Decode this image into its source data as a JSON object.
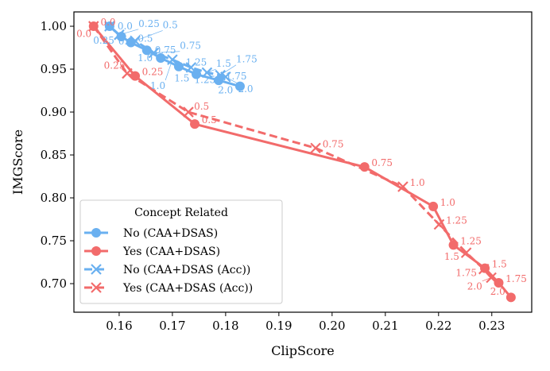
{
  "chart_data": {
    "type": "line",
    "xlabel": "ClipScore",
    "ylabel": "IMGScore",
    "xlim": [
      0.1515,
      0.2375
    ],
    "ylim": [
      0.6667,
      1.0167
    ],
    "xticks": [
      "0.16",
      "0.17",
      "0.18",
      "0.19",
      "0.20",
      "0.21",
      "0.22",
      "0.23"
    ],
    "yticks": [
      "0.70",
      "0.75",
      "0.80",
      "0.85",
      "0.90",
      "0.95",
      "1.00"
    ],
    "grid": false,
    "legend": {
      "title": "Concept Related",
      "placement": "lower-left"
    },
    "series": [
      {
        "name": "No (CAA+DSAS)",
        "color": "#6ab0f0",
        "marker": "circle",
        "dash": false,
        "labels": [
          "0.0",
          "0.25",
          "0.5",
          "0.75",
          "1.0",
          "1.25",
          "1.5",
          "1.75",
          "2.0"
        ],
        "x": [
          0.1582,
          0.1604,
          0.1622,
          0.1652,
          0.1678,
          0.1712,
          0.1745,
          0.1787,
          0.1827
        ],
        "y": [
          1.0,
          0.988,
          0.981,
          0.972,
          0.963,
          0.953,
          0.944,
          0.937,
          0.93
        ]
      },
      {
        "name": "Yes (CAA+DSAS)",
        "color": "#f26b6b",
        "marker": "circle",
        "dash": false,
        "labels": [
          "0.0",
          "0.25",
          "0.5",
          "0.75",
          "1.0",
          "1.25",
          "1.5",
          "1.75",
          "2.0"
        ],
        "x": [
          0.1552,
          0.163,
          0.1742,
          0.2061,
          0.219,
          0.2228,
          0.2287,
          0.2313,
          0.2336
        ],
        "y": [
          1.0,
          0.942,
          0.886,
          0.836,
          0.79,
          0.745,
          0.718,
          0.701,
          0.684
        ]
      },
      {
        "name": "No (CAA+DSAS (Acc))",
        "color": "#6ab0f0",
        "marker": "x",
        "dash": true,
        "labels": [
          "0.0",
          "0.25",
          "0.5",
          "0.75",
          "1.0",
          "1.25",
          "1.5",
          "1.75",
          "2.0"
        ],
        "x": [
          0.1582,
          0.16,
          0.163,
          0.1665,
          0.17,
          0.1735,
          0.1765,
          0.179,
          0.18
        ],
        "y": [
          1.0,
          0.99,
          0.983,
          0.969,
          0.961,
          0.952,
          0.946,
          0.943,
          0.941
        ]
      },
      {
        "name": "Yes (CAA+DSAS (Acc))",
        "color": "#f26b6b",
        "marker": "x",
        "dash": true,
        "labels": [
          "0.0",
          "0.25",
          "0.5",
          "0.75",
          "1.0",
          "1.25",
          "1.5",
          "1.75",
          "2.0"
        ],
        "x": [
          0.1552,
          0.1615,
          0.173,
          0.1969,
          0.2133,
          0.2201,
          0.2252,
          0.2285,
          0.2299
        ],
        "y": [
          1.0,
          0.945,
          0.9,
          0.858,
          0.813,
          0.769,
          0.736,
          0.717,
          0.707
        ]
      }
    ]
  }
}
